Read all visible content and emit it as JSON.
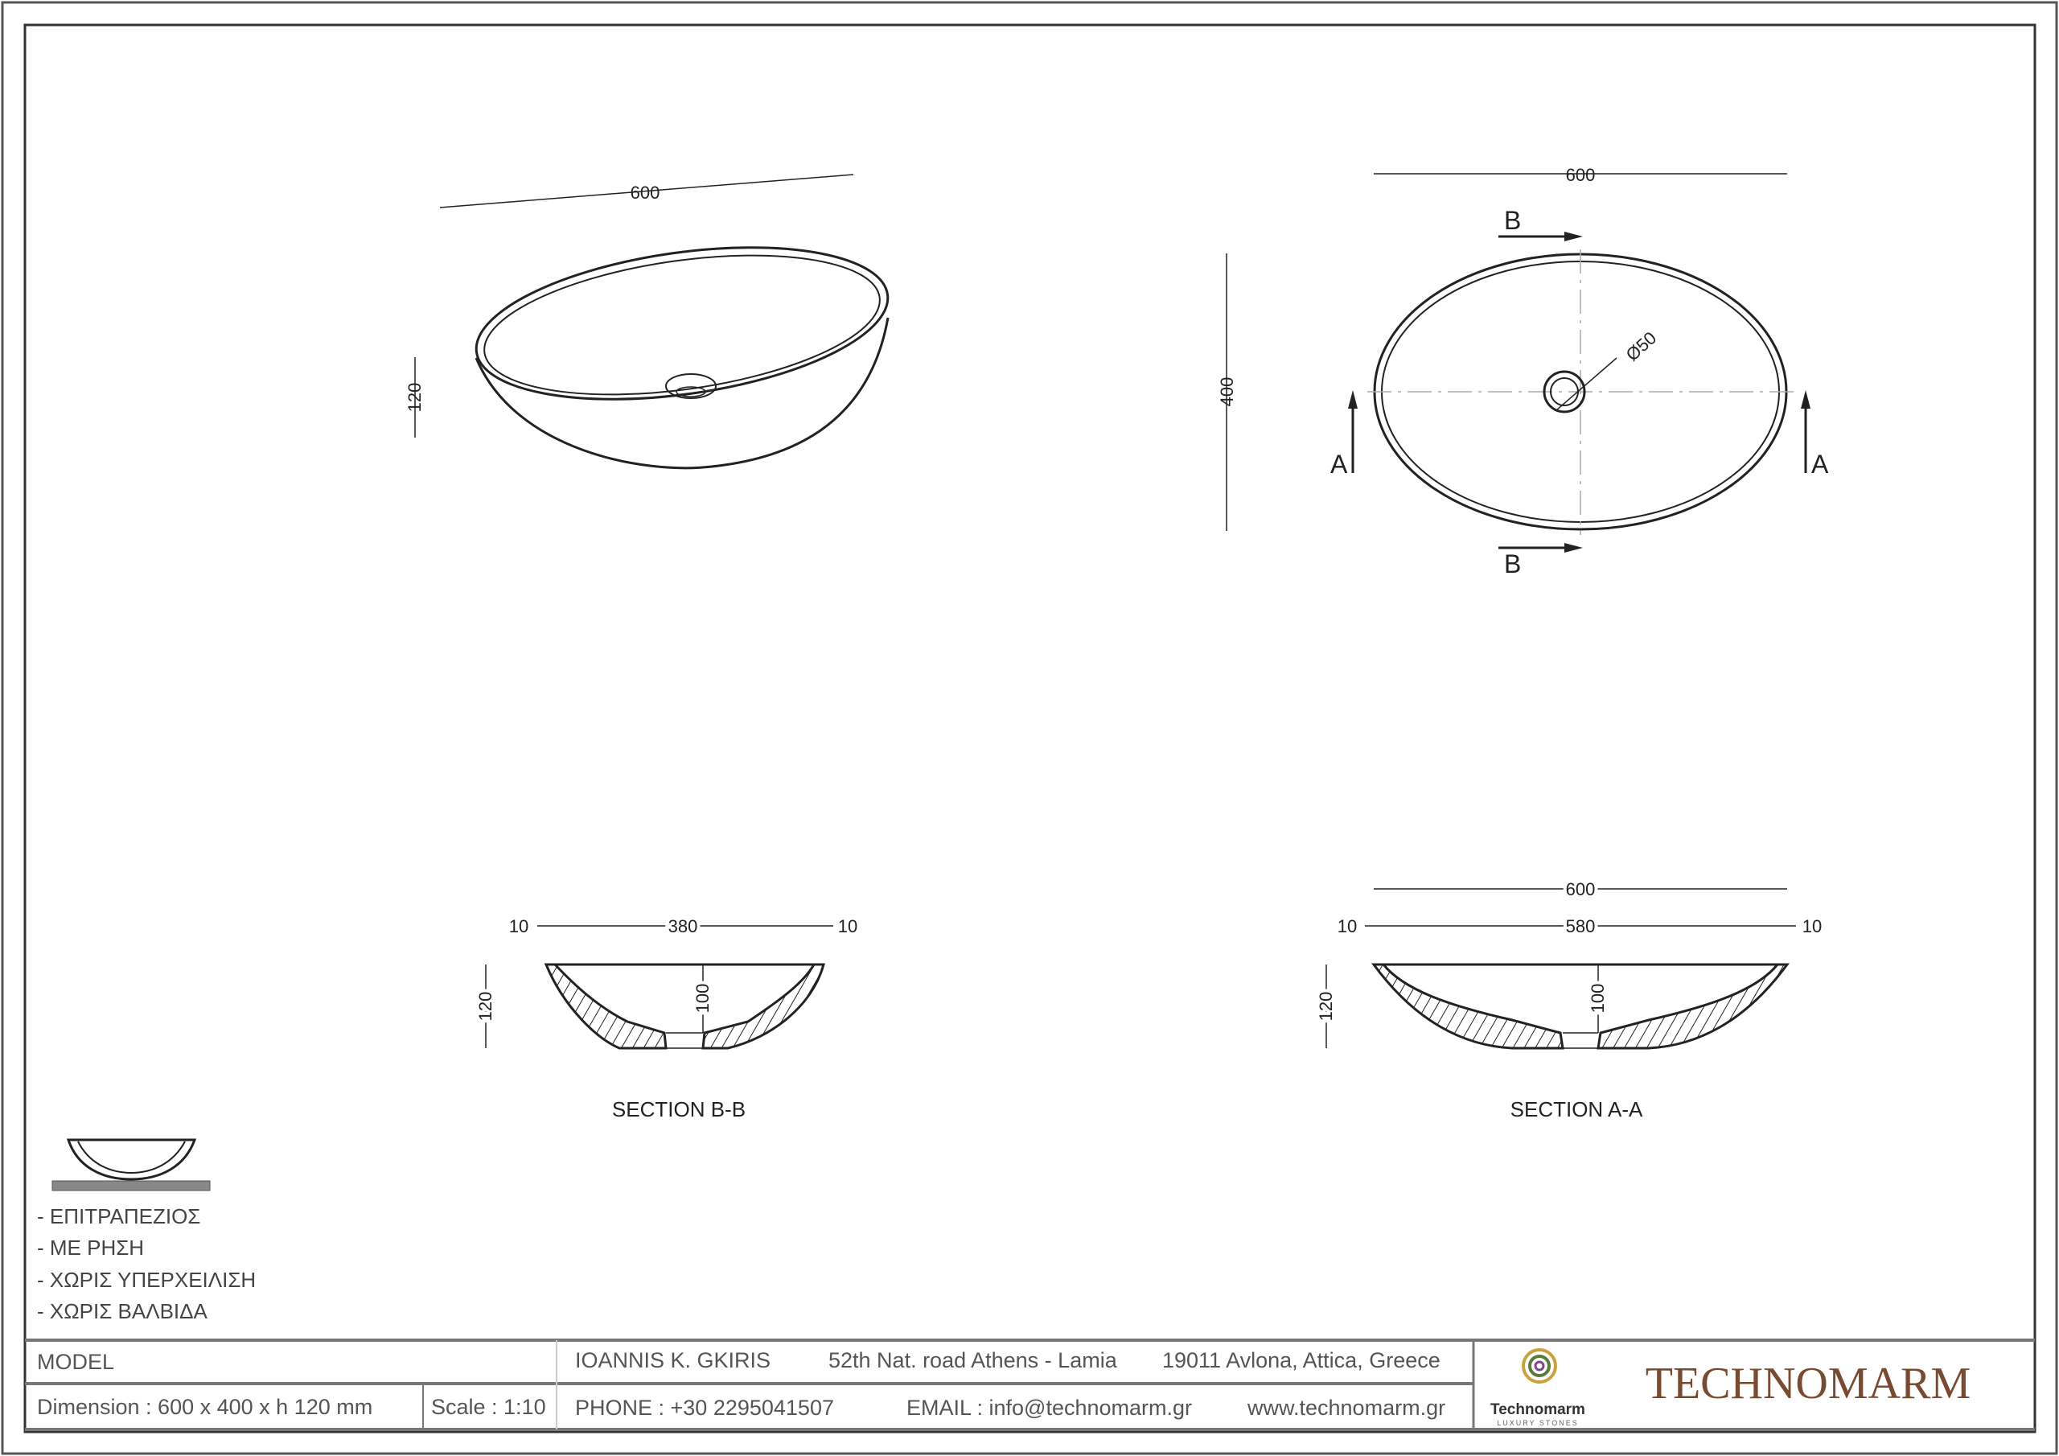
{
  "top_left_view": {
    "width_dim": "600",
    "height_dim": "120"
  },
  "top_view": {
    "width_dim": "600",
    "depth_dim": "400",
    "drain_dim": "Ø50",
    "section_b_label": "B",
    "section_a_label": "A"
  },
  "section_bb": {
    "title": "SECTION  B-B",
    "left_wall": "10",
    "inner_width": "380",
    "right_wall": "10",
    "height": "120",
    "inner_depth": "100"
  },
  "section_aa": {
    "title": "SECTION  A-A",
    "overall_width": "600",
    "left_wall": "10",
    "inner_width": "580",
    "right_wall": "10",
    "height": "120",
    "inner_depth": "100"
  },
  "notes": [
    "- ΕΠΙΤΡΑΠΕΖΙΟΣ",
    "-  ΜΕ ΡΗΣΗ",
    "-  ΧΩΡΙΣ ΥΠΕΡΧΕΙΛΙΣΗ",
    "-  ΧΩΡΙΣ ΒΑΛΒΙΔΑ"
  ],
  "title_block": {
    "model_label": "MODEL",
    "dimension": "Dimension :  600 x 400 x h 120 mm",
    "scale": "Scale : 1:10",
    "name": "IOANNIS K. GKIRIS",
    "address1": "52th Nat. road Athens - Lamia",
    "address2": "19011 Avlona, Attica, Greece",
    "phone": "PHONE : +30 2295041507",
    "email": "EMAIL : info@technomarm.gr",
    "website": "www.technomarm.gr",
    "logo_name": "Technomarm",
    "logo_tagline": "LUXURY STONES",
    "brand": "TECHNOMARM",
    "brand_color": "#7a4a30"
  }
}
